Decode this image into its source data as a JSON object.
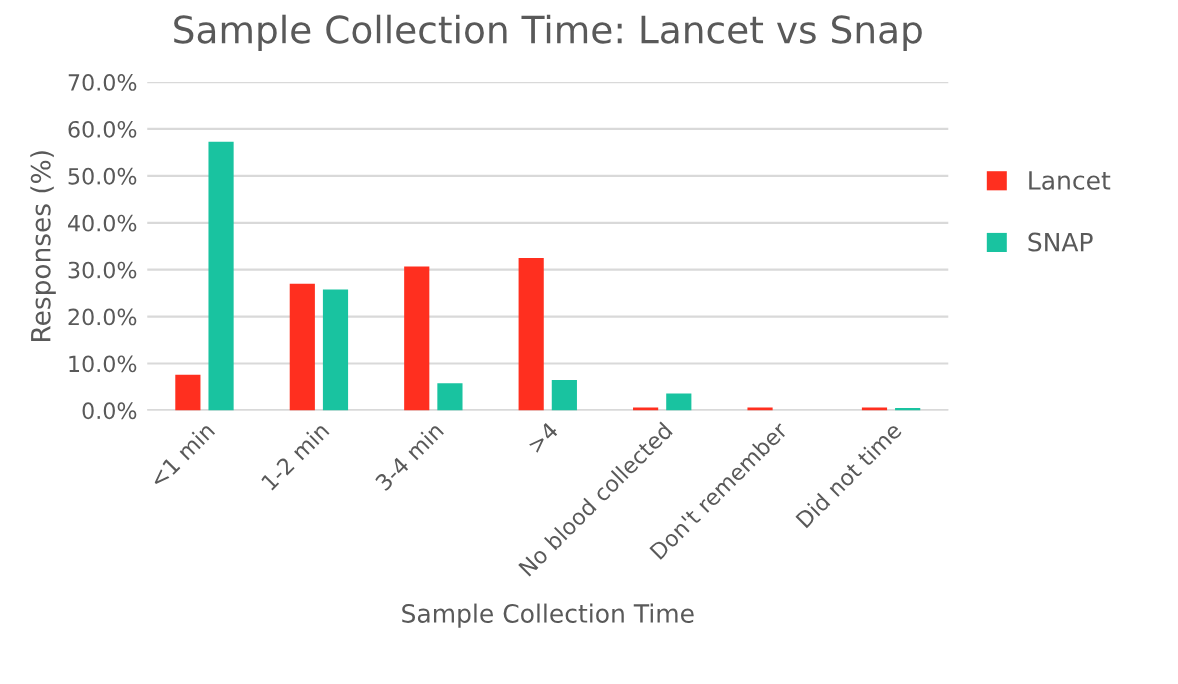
{
  "chart_data": {
    "type": "bar",
    "title": "Sample Collection Time: Lancet vs Snap",
    "xlabel": "Sample Collection Time",
    "ylabel": "Responses (%)",
    "categories": [
      "<1 min",
      "1-2 min",
      "3-4 min",
      ">4",
      "No blood collected",
      "Don't remember",
      "Did not time"
    ],
    "series": [
      {
        "name": "Lancet",
        "color": "#ff2f1f",
        "values": [
          7.6,
          27.0,
          30.7,
          32.5,
          0.6,
          0.6,
          0.6
        ]
      },
      {
        "name": "SNAP",
        "color": "#19c3a0",
        "values": [
          57.3,
          25.8,
          5.8,
          6.5,
          3.6,
          0,
          0.5
        ]
      }
    ],
    "ylim": [
      0,
      70
    ],
    "yticks": [
      {
        "value": 0,
        "label": "0.0%"
      },
      {
        "value": 10,
        "label": "10.0%"
      },
      {
        "value": 20,
        "label": "20.0%"
      },
      {
        "value": 30,
        "label": "30.0%"
      },
      {
        "value": 40,
        "label": "40.0%"
      },
      {
        "value": 50,
        "label": "50.0%"
      },
      {
        "value": 60,
        "label": "60.0%"
      },
      {
        "value": 70,
        "label": "70.0%"
      }
    ],
    "grid": "y",
    "legend": "right"
  }
}
